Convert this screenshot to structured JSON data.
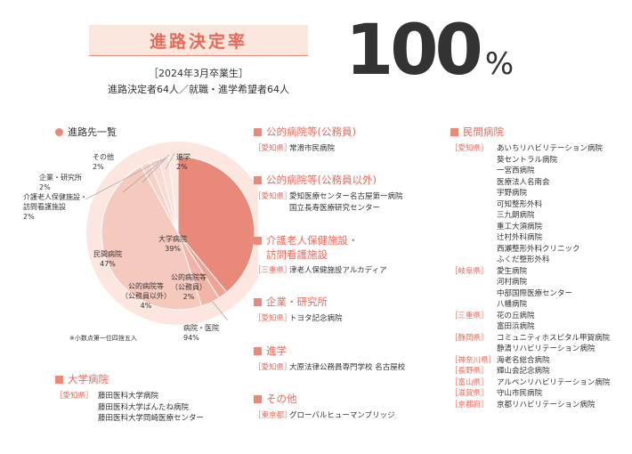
{
  "header": {
    "title": "進路決定率",
    "subtitle_year": "［2024年3月卒業生］",
    "subtitle_counts": "進路決定者64人／就職・進学希望者64人",
    "rate_number": "100",
    "rate_unit": "%"
  },
  "pie": {
    "heading": "進路先一覧",
    "footnote": "※小数点第一位四捨五入",
    "colors": {
      "accent": "#e9897a",
      "light": "#f6c9bf",
      "lighter": "#fbe2db",
      "ring": "#fde6e0"
    },
    "slices": [
      {
        "name": "大学病院",
        "value": "39%",
        "pct": 39
      },
      {
        "name": "公的病院等（公務員）",
        "value": "2%",
        "pct": 2
      },
      {
        "name": "公的病院等（公務員以外）",
        "value": "4%",
        "pct": 4
      },
      {
        "name": "民間病院",
        "value": "47%",
        "pct": 47
      },
      {
        "name": "介護老人保健施設・訪問看護施設",
        "value": "2%",
        "pct": 2
      },
      {
        "name": "企業・研究所",
        "value": "2%",
        "pct": 2
      },
      {
        "name": "その他",
        "value": "2%",
        "pct": 2
      },
      {
        "name": "進学",
        "value": "2%",
        "pct": 2
      }
    ],
    "labels": {
      "daigaku": "大学病院",
      "daigaku_v": "39%",
      "koteki1_a": "公的病院等",
      "koteki1_b": "（公務員）",
      "koteki1_v": "2%",
      "koteki2_a": "公的病院等",
      "koteki2_b": "（公務員以外）",
      "koteki2_v": "4%",
      "minkan": "民間病院",
      "minkan_v": "47%",
      "kaigo_a": "介護老人保健施設・",
      "kaigo_b": "訪問看護施設",
      "kaigo_v": "2%",
      "kigyo": "企業・研究所",
      "kigyo_v": "2%",
      "sonota": "その他",
      "sonota_v": "2%",
      "shingaku": "進学",
      "shingaku_v": "2%",
      "hospital_total": "病院・医院",
      "hospital_total_v": "94%"
    }
  },
  "sections": {
    "daigaku": {
      "title": "大学病院",
      "rows": [
        {
          "pref": "［愛知県］",
          "name": "藤田医科大学病院"
        },
        {
          "pref": "",
          "name": "藤田医科大学ばんたね病院"
        },
        {
          "pref": "",
          "name": "藤田医科大学岡崎医療センター"
        }
      ]
    },
    "koteki_komuin": {
      "title": "公的病院等(公務員)",
      "rows": [
        {
          "pref": "［愛知県］",
          "name": "常滑市民病院"
        }
      ]
    },
    "koteki_other": {
      "title": "公的病院等(公務員以外)",
      "rows": [
        {
          "pref": "［愛知県］",
          "name": "愛知医療センター名古屋第一病院"
        },
        {
          "pref": "",
          "name": "国立長寿医療研究センター"
        }
      ]
    },
    "kaigo": {
      "title_a": "介護老人保健施設・",
      "title_b": "訪問看護施設",
      "rows": [
        {
          "pref": "［三重県］",
          "name": "津老人保健施設アルカディア"
        }
      ]
    },
    "kigyo": {
      "title": "企業・研究所",
      "rows": [
        {
          "pref": "［愛知県］",
          "name": "トヨタ記念病院"
        }
      ]
    },
    "shingaku": {
      "title": "進学",
      "rows": [
        {
          "pref": "［愛知県］",
          "name": "大原法律公務員専門学校 名古屋校"
        }
      ]
    },
    "sonota": {
      "title": "その他",
      "rows": [
        {
          "pref": "［東京都］",
          "name": "グローバルヒューマンブリッジ"
        }
      ]
    },
    "minkan": {
      "title": "民間病院",
      "rows": [
        {
          "pref": "［愛知県］",
          "name": "あいちリハビリテーション病院"
        },
        {
          "pref": "",
          "name": "葵セントラル病院"
        },
        {
          "pref": "",
          "name": "一宮西病院"
        },
        {
          "pref": "",
          "name": "医療法人名南会"
        },
        {
          "pref": "",
          "name": "宇野病院"
        },
        {
          "pref": "",
          "name": "可知整形外科"
        },
        {
          "pref": "",
          "name": "三九朗病院"
        },
        {
          "pref": "",
          "name": "重工大須病院"
        },
        {
          "pref": "",
          "name": "辻村外科病院"
        },
        {
          "pref": "",
          "name": "西瀬整形外科クリニック"
        },
        {
          "pref": "",
          "name": "ふくだ整形外科"
        },
        {
          "pref": "［岐阜県］",
          "name": "愛生病院"
        },
        {
          "pref": "",
          "name": "河村病院"
        },
        {
          "pref": "",
          "name": "中部国際医療センター"
        },
        {
          "pref": "",
          "name": "八幡病院"
        },
        {
          "pref": "［三重県］",
          "name": "花の丘病院"
        },
        {
          "pref": "",
          "name": "富田浜病院"
        },
        {
          "pref": "［静岡県］",
          "name": "コミュニティホスピタル甲賀病院"
        },
        {
          "pref": "",
          "name": "静清リハビリテーション病院"
        },
        {
          "pref": "［神奈川県］",
          "name": "海老名総合病院"
        },
        {
          "pref": "［長野県］",
          "name": "輝山会記念病院"
        },
        {
          "pref": "［富山県］",
          "name": "アルペンリハビリテーション病院"
        },
        {
          "pref": "［滋賀県］",
          "name": "守山市民病院"
        },
        {
          "pref": "［京都府］",
          "name": "京都リハビリテーション病院"
        }
      ]
    }
  }
}
